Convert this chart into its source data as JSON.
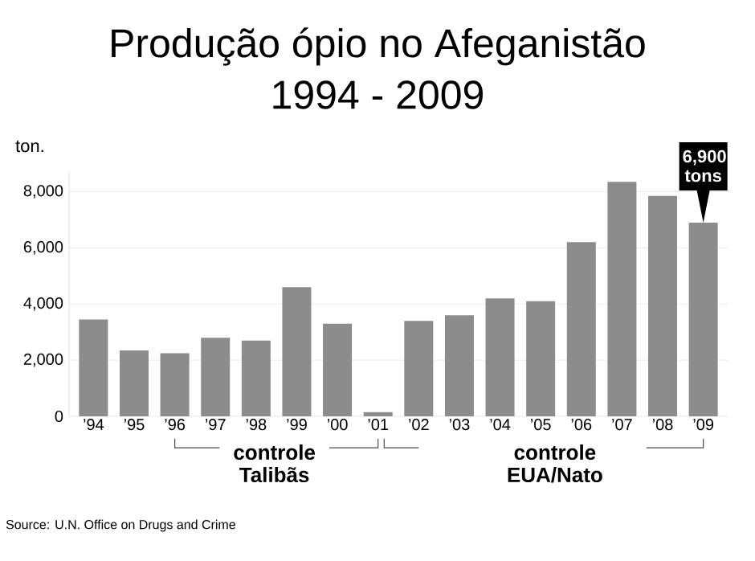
{
  "chart_data": {
    "type": "bar",
    "title": "Produção ópio no Afeganistão",
    "subtitle": "1994 - 2009",
    "ylabel": "ton.",
    "categories": [
      "’94",
      "’95",
      "’96",
      "’97",
      "’98",
      "’99",
      "’00",
      "’01",
      "’02",
      "’03",
      "’04",
      "’05",
      "’06",
      "’07",
      "’08",
      "’09"
    ],
    "values": [
      3450,
      2350,
      2250,
      2800,
      2700,
      4600,
      3300,
      150,
      3400,
      3600,
      4200,
      4100,
      6200,
      8350,
      7850,
      6900
    ],
    "value_labels": [
      null,
      null,
      null,
      null,
      null,
      null,
      null,
      null,
      null,
      null,
      null,
      null,
      null,
      null,
      null,
      "6,900 tons"
    ],
    "color": "#8c8c8c",
    "ylim": [
      0,
      8700
    ],
    "yticks": [
      0,
      {
        "value": 2000,
        "label": "2,000"
      },
      {
        "value": 4000,
        "label": "4,000"
      },
      {
        "value": 6000,
        "label": "6,000"
      },
      {
        "value": 8000,
        "label": "8,000"
      }
    ],
    "grid": "y",
    "annotations": [
      "controle Talibãs",
      "controle EUA/Nato",
      "Source: U.N. Office on Drugs and Crime"
    ]
  }
}
